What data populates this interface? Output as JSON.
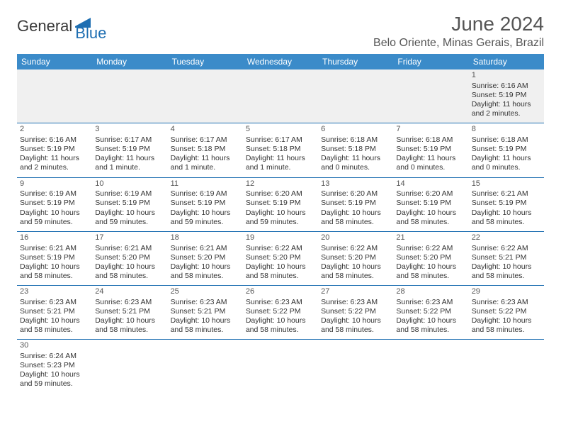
{
  "brand": {
    "general": "General",
    "blue": "Blue",
    "logo_color": "#1f6fb2"
  },
  "header": {
    "title": "June 2024",
    "location": "Belo Oriente, Minas Gerais, Brazil"
  },
  "weekdays": [
    "Sunday",
    "Monday",
    "Tuesday",
    "Wednesday",
    "Thursday",
    "Friday",
    "Saturday"
  ],
  "colors": {
    "header_bg": "#3b8bc9",
    "header_text": "#ffffff",
    "row_divider": "#1f6fb2",
    "shade": "#f0f0f0"
  },
  "weeks": [
    [
      null,
      null,
      null,
      null,
      null,
      null,
      {
        "n": "1",
        "sr": "Sunrise: 6:16 AM",
        "ss": "Sunset: 5:19 PM",
        "dl": "Daylight: 11 hours and 2 minutes."
      }
    ],
    [
      {
        "n": "2",
        "sr": "Sunrise: 6:16 AM",
        "ss": "Sunset: 5:19 PM",
        "dl": "Daylight: 11 hours and 2 minutes."
      },
      {
        "n": "3",
        "sr": "Sunrise: 6:17 AM",
        "ss": "Sunset: 5:19 PM",
        "dl": "Daylight: 11 hours and 1 minute."
      },
      {
        "n": "4",
        "sr": "Sunrise: 6:17 AM",
        "ss": "Sunset: 5:18 PM",
        "dl": "Daylight: 11 hours and 1 minute."
      },
      {
        "n": "5",
        "sr": "Sunrise: 6:17 AM",
        "ss": "Sunset: 5:18 PM",
        "dl": "Daylight: 11 hours and 1 minute."
      },
      {
        "n": "6",
        "sr": "Sunrise: 6:18 AM",
        "ss": "Sunset: 5:18 PM",
        "dl": "Daylight: 11 hours and 0 minutes."
      },
      {
        "n": "7",
        "sr": "Sunrise: 6:18 AM",
        "ss": "Sunset: 5:19 PM",
        "dl": "Daylight: 11 hours and 0 minutes."
      },
      {
        "n": "8",
        "sr": "Sunrise: 6:18 AM",
        "ss": "Sunset: 5:19 PM",
        "dl": "Daylight: 11 hours and 0 minutes."
      }
    ],
    [
      {
        "n": "9",
        "sr": "Sunrise: 6:19 AM",
        "ss": "Sunset: 5:19 PM",
        "dl": "Daylight: 10 hours and 59 minutes."
      },
      {
        "n": "10",
        "sr": "Sunrise: 6:19 AM",
        "ss": "Sunset: 5:19 PM",
        "dl": "Daylight: 10 hours and 59 minutes."
      },
      {
        "n": "11",
        "sr": "Sunrise: 6:19 AM",
        "ss": "Sunset: 5:19 PM",
        "dl": "Daylight: 10 hours and 59 minutes."
      },
      {
        "n": "12",
        "sr": "Sunrise: 6:20 AM",
        "ss": "Sunset: 5:19 PM",
        "dl": "Daylight: 10 hours and 59 minutes."
      },
      {
        "n": "13",
        "sr": "Sunrise: 6:20 AM",
        "ss": "Sunset: 5:19 PM",
        "dl": "Daylight: 10 hours and 58 minutes."
      },
      {
        "n": "14",
        "sr": "Sunrise: 6:20 AM",
        "ss": "Sunset: 5:19 PM",
        "dl": "Daylight: 10 hours and 58 minutes."
      },
      {
        "n": "15",
        "sr": "Sunrise: 6:21 AM",
        "ss": "Sunset: 5:19 PM",
        "dl": "Daylight: 10 hours and 58 minutes."
      }
    ],
    [
      {
        "n": "16",
        "sr": "Sunrise: 6:21 AM",
        "ss": "Sunset: 5:19 PM",
        "dl": "Daylight: 10 hours and 58 minutes."
      },
      {
        "n": "17",
        "sr": "Sunrise: 6:21 AM",
        "ss": "Sunset: 5:20 PM",
        "dl": "Daylight: 10 hours and 58 minutes."
      },
      {
        "n": "18",
        "sr": "Sunrise: 6:21 AM",
        "ss": "Sunset: 5:20 PM",
        "dl": "Daylight: 10 hours and 58 minutes."
      },
      {
        "n": "19",
        "sr": "Sunrise: 6:22 AM",
        "ss": "Sunset: 5:20 PM",
        "dl": "Daylight: 10 hours and 58 minutes."
      },
      {
        "n": "20",
        "sr": "Sunrise: 6:22 AM",
        "ss": "Sunset: 5:20 PM",
        "dl": "Daylight: 10 hours and 58 minutes."
      },
      {
        "n": "21",
        "sr": "Sunrise: 6:22 AM",
        "ss": "Sunset: 5:20 PM",
        "dl": "Daylight: 10 hours and 58 minutes."
      },
      {
        "n": "22",
        "sr": "Sunrise: 6:22 AM",
        "ss": "Sunset: 5:21 PM",
        "dl": "Daylight: 10 hours and 58 minutes."
      }
    ],
    [
      {
        "n": "23",
        "sr": "Sunrise: 6:23 AM",
        "ss": "Sunset: 5:21 PM",
        "dl": "Daylight: 10 hours and 58 minutes."
      },
      {
        "n": "24",
        "sr": "Sunrise: 6:23 AM",
        "ss": "Sunset: 5:21 PM",
        "dl": "Daylight: 10 hours and 58 minutes."
      },
      {
        "n": "25",
        "sr": "Sunrise: 6:23 AM",
        "ss": "Sunset: 5:21 PM",
        "dl": "Daylight: 10 hours and 58 minutes."
      },
      {
        "n": "26",
        "sr": "Sunrise: 6:23 AM",
        "ss": "Sunset: 5:22 PM",
        "dl": "Daylight: 10 hours and 58 minutes."
      },
      {
        "n": "27",
        "sr": "Sunrise: 6:23 AM",
        "ss": "Sunset: 5:22 PM",
        "dl": "Daylight: 10 hours and 58 minutes."
      },
      {
        "n": "28",
        "sr": "Sunrise: 6:23 AM",
        "ss": "Sunset: 5:22 PM",
        "dl": "Daylight: 10 hours and 58 minutes."
      },
      {
        "n": "29",
        "sr": "Sunrise: 6:23 AM",
        "ss": "Sunset: 5:22 PM",
        "dl": "Daylight: 10 hours and 58 minutes."
      }
    ],
    [
      {
        "n": "30",
        "sr": "Sunrise: 6:24 AM",
        "ss": "Sunset: 5:23 PM",
        "dl": "Daylight: 10 hours and 59 minutes."
      },
      null,
      null,
      null,
      null,
      null,
      null
    ]
  ]
}
